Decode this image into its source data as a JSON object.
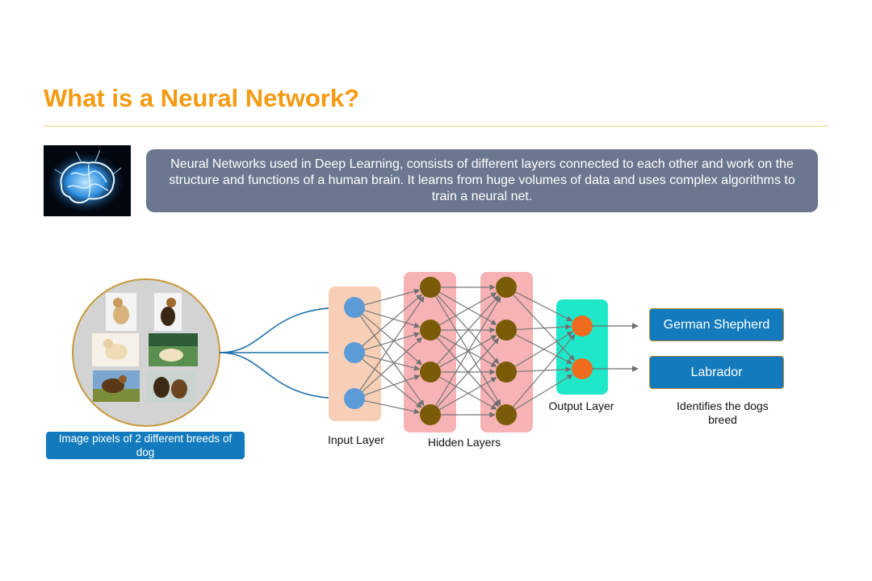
{
  "slide": {
    "title": "What is a Neural Network?",
    "description": "Neural Networks used in Deep Learning, consists of different layers connected to each other and work on the structure and functions of a human brain. It learns from huge volumes of data and uses complex algorithms to train a neural net."
  },
  "input_caption": "Image pixels of 2 different breeds of dog",
  "layers": {
    "input": "Input Layer",
    "hidden": "Hidden Layers",
    "output": "Output Layer"
  },
  "outputs": [
    "German Shepherd",
    "Labrador"
  ],
  "result_caption": "Identifies the dogs breed",
  "colors": {
    "title": "#f59a12",
    "input_node": "#5d9ad8",
    "hidden_node": "#7a5b07",
    "output_node": "#ef6c1f",
    "input_layer_bg": "#f7cfb6",
    "hidden_layer_bg": "#f6b2b4",
    "output_layer_bg": "#1fe7c9",
    "result_box": "#137bbd"
  }
}
